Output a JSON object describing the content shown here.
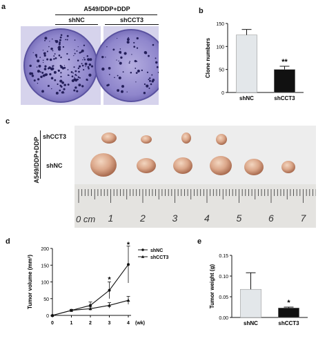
{
  "panels": {
    "a": {
      "label": "a",
      "header": "A549/DDP+DDP",
      "groups": [
        "shNC",
        "shCCT3"
      ]
    },
    "c": {
      "label": "c",
      "side_label": "A549/DDP+DDP",
      "rows": [
        "shCCT3",
        "shNC"
      ],
      "ruler_unit": "0 cm",
      "ruler_numbers": [
        "1",
        "2",
        "3",
        "4",
        "5",
        "6",
        "7"
      ]
    }
  },
  "chart_data": [
    {
      "id": "b",
      "panel_label": "b",
      "type": "bar",
      "categories": [
        "shNC",
        "shCCT3"
      ],
      "values": [
        125,
        50
      ],
      "errors": [
        12,
        7
      ],
      "colors": [
        "#e3e7ea",
        "#111111"
      ],
      "significance": [
        "",
        "**"
      ],
      "ylabel": "Clone numbers",
      "xlabel": "",
      "ylim": [
        0,
        150
      ],
      "yticks": [
        "0",
        "50",
        "100",
        "150"
      ]
    },
    {
      "id": "d",
      "panel_label": "d",
      "type": "line",
      "x": [
        0,
        1,
        2,
        3,
        4
      ],
      "xticks": [
        "0",
        "1",
        "2",
        "3",
        "4"
      ],
      "xunit": "(wk)",
      "ylabel": "Tumor volume (mm³)",
      "ylim": [
        0,
        200
      ],
      "yticks": [
        "0",
        "50",
        "100",
        "150",
        "200"
      ],
      "series": [
        {
          "name": "shNC",
          "values": [
            0,
            15,
            30,
            75,
            152
          ],
          "errors": [
            0,
            3,
            10,
            25,
            55
          ],
          "marker": "circle"
        },
        {
          "name": "shCCT3",
          "values": [
            0,
            15,
            20,
            30,
            45
          ],
          "errors": [
            0,
            2,
            5,
            8,
            12
          ],
          "marker": "triangle"
        }
      ],
      "annotations": [
        {
          "x": 3,
          "y": 108,
          "text": "*"
        },
        {
          "x": 4,
          "y": 212,
          "text": "*"
        }
      ],
      "legend_position": "top-right"
    },
    {
      "id": "e",
      "panel_label": "e",
      "type": "bar",
      "categories": [
        "shNC",
        "shCCT3"
      ],
      "values": [
        0.068,
        0.023
      ],
      "errors": [
        0.04,
        0.002
      ],
      "colors": [
        "#e3e7ea",
        "#111111"
      ],
      "significance": [
        "",
        "*"
      ],
      "ylabel": "Tumor weight (g)",
      "xlabel": "",
      "ylim": [
        0,
        0.15
      ],
      "yticks": [
        "0.00",
        "0.05",
        "0.10",
        "0.15"
      ]
    }
  ]
}
